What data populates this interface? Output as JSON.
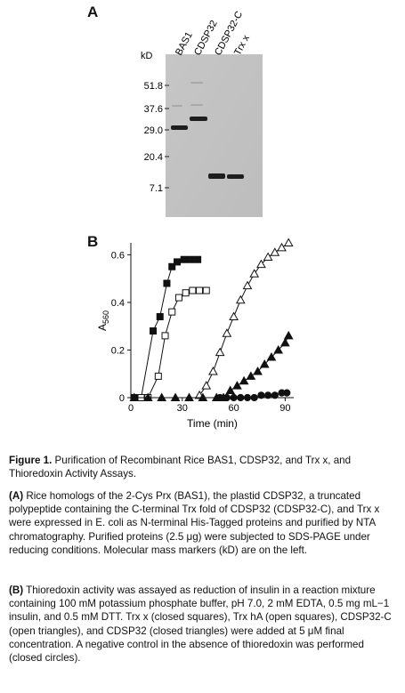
{
  "panel_a": {
    "label": "A",
    "kd_label": "kD",
    "lane_labels": [
      "BAS1",
      "CDSP32",
      "CDSP32-C",
      "Trx x"
    ],
    "markers": [
      "51.8",
      "37.6",
      "29.0",
      "20.4",
      "7.1"
    ]
  },
  "panel_b": {
    "label": "B",
    "chart_data": {
      "type": "line",
      "xlabel": "Time (min)",
      "ylabel": "A560",
      "xlim": [
        0,
        95
      ],
      "ylim": [
        0,
        0.65
      ],
      "xticks": [
        0,
        30,
        60,
        90
      ],
      "yticks": [
        0,
        0.2,
        0.4,
        0.6
      ],
      "series": [
        {
          "marker": "filled-square",
          "points": [
            [
              2,
              0
            ],
            [
              6,
              0
            ],
            [
              13,
              0.28
            ],
            [
              17,
              0.34
            ],
            [
              21,
              0.48
            ],
            [
              24,
              0.55
            ],
            [
              27,
              0.57
            ],
            [
              31,
              0.58
            ],
            [
              35,
              0.58
            ],
            [
              39,
              0.58
            ]
          ]
        },
        {
          "marker": "open-square",
          "points": [
            [
              6,
              0
            ],
            [
              10,
              0
            ],
            [
              16,
              0.09
            ],
            [
              20,
              0.26
            ],
            [
              24,
              0.36
            ],
            [
              28,
              0.42
            ],
            [
              32,
              0.44
            ],
            [
              36,
              0.45
            ],
            [
              40,
              0.45
            ],
            [
              44,
              0.45
            ]
          ]
        },
        {
          "marker": "open-triangle",
          "points": [
            [
              40,
              0.01
            ],
            [
              44,
              0.05
            ],
            [
              48,
              0.11
            ],
            [
              52,
              0.19
            ],
            [
              56,
              0.27
            ],
            [
              60,
              0.34
            ],
            [
              64,
              0.41
            ],
            [
              68,
              0.47
            ],
            [
              72,
              0.52
            ],
            [
              76,
              0.56
            ],
            [
              80,
              0.59
            ],
            [
              84,
              0.61
            ],
            [
              88,
              0.63
            ],
            [
              92,
              0.65
            ]
          ]
        },
        {
          "marker": "filled-triangle",
          "points": [
            [
              2,
              0
            ],
            [
              10,
              0
            ],
            [
              18,
              0
            ],
            [
              26,
              0
            ],
            [
              34,
              0
            ],
            [
              42,
              0
            ],
            [
              50,
              0
            ],
            [
              54,
              0
            ],
            [
              58,
              0.03
            ],
            [
              62,
              0.05
            ],
            [
              66,
              0.07
            ],
            [
              70,
              0.09
            ],
            [
              74,
              0.11
            ],
            [
              78,
              0.14
            ],
            [
              82,
              0.17
            ],
            [
              86,
              0.2
            ],
            [
              90,
              0.23
            ],
            [
              92,
              0.26
            ]
          ]
        },
        {
          "marker": "filled-circle",
          "points": [
            [
              52,
              0
            ],
            [
              56,
              0
            ],
            [
              60,
              0
            ],
            [
              64,
              0
            ],
            [
              68,
              0
            ],
            [
              72,
              0
            ],
            [
              76,
              0.01
            ],
            [
              80,
              0.01
            ],
            [
              84,
              0.01
            ],
            [
              88,
              0.02
            ],
            [
              91,
              0.02
            ]
          ]
        }
      ]
    }
  },
  "caption": {
    "title_bold": "Figure 1.",
    "title_rest": " Purification of Recombinant Rice BAS1, CDSP32, and Trx x, and Thioredoxin Activity Assays.",
    "a_label": "(A)",
    "a_text": " Rice homologs of the 2-Cys Prx (BAS1), the plastid CDSP32, a truncated polypeptide containing the C-terminal Trx fold of CDSP32 (CDSP32-C), and Trx x were expressed in E. coli as N-terminal His-Tagged proteins and purified by NTA chromatography. Purified proteins (2.5 μg) were subjected to SDS-PAGE under reducing conditions. Molecular mass markers (kD) are on the left.",
    "b_label": "(B)",
    "b_text": " Thioredoxin activity was assayed as reduction of insulin in a reaction mixture containing 100 mM potassium phosphate buffer, pH 7.0, 2 mM EDTA, 0.5 mg mL−1 insulin, and 0.5 mM DTT. Trx x (closed squares), Trx hA (open squares), CDSP32-C (open triangles), and CDSP32 (closed triangles) were added at 5 μM final concentration. A negative control in the absence of thioredoxin was performed (closed circles)."
  }
}
